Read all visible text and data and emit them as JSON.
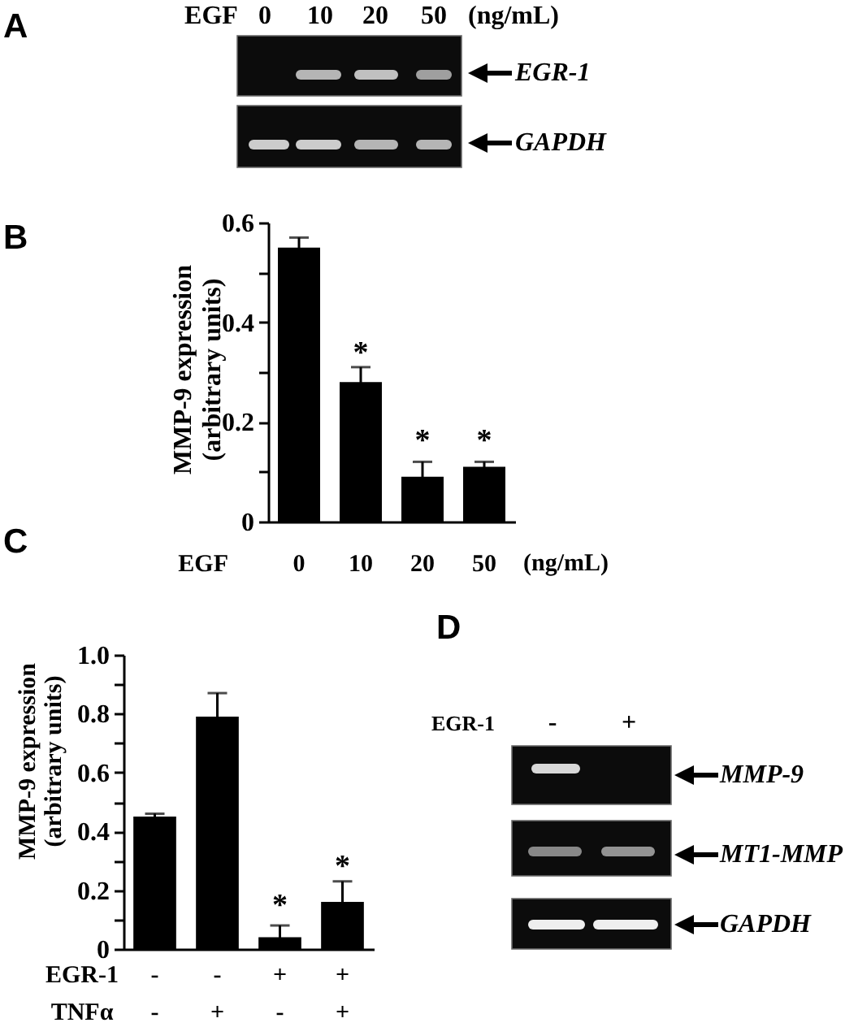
{
  "chart_data": [
    {
      "type": "other",
      "title": "A",
      "annotations": [
        "EGF",
        "0",
        "10",
        "20",
        "50",
        "(ng/mL)",
        "EGR-1",
        "GAPDH"
      ]
    },
    {
      "type": "bar",
      "title": "B",
      "ylabel": "MMP-9 expression\n(arbitrary units)",
      "xlabel": "EGF",
      "categories": [
        "0",
        "10",
        "20",
        "50"
      ],
      "values": [
        0.55,
        0.28,
        0.09,
        0.11
      ],
      "errors": [
        0.02,
        0.03,
        0.03,
        0.01
      ],
      "color": "#000000",
      "ylim": [
        0,
        0.6
      ],
      "yticks": [
        0,
        {
          "value": 0.1,
          "label": null
        },
        0.2,
        {
          "value": 0.3,
          "label": null
        },
        0.4,
        {
          "value": 0.5,
          "label": null
        },
        0.6
      ],
      "annotations": [
        "(ng/mL)",
        "*",
        "*",
        "*"
      ]
    },
    {
      "type": "bar",
      "title": "C",
      "ylabel": "MMP-9 expression\n(arbitrary units)",
      "xlabel": "EGR-1\nTNFα",
      "categories": [
        "-\n-",
        "-\n+",
        "+\n-",
        "+\n+"
      ],
      "values": [
        0.45,
        0.79,
        0.04,
        0.16
      ],
      "errors": [
        0.01,
        0.08,
        0.04,
        0.07
      ],
      "color": "#000000",
      "ylim": [
        0,
        1
      ],
      "yticks": [
        0,
        {
          "value": 0.1,
          "label": null
        },
        0.2,
        {
          "value": 0.3,
          "label": null
        },
        0.4,
        {
          "value": 0.5,
          "label": null
        },
        0.6,
        {
          "value": 0.7,
          "label": null
        },
        0.8,
        {
          "value": 0.9,
          "label": null
        },
        {
          "value": 1,
          "label": "1.0"
        }
      ],
      "annotations": [
        "*",
        "*"
      ]
    },
    {
      "type": "other",
      "title": "D",
      "annotations": [
        "EGR-1",
        "-",
        "+",
        "MMP-9",
        "MT1-MMP",
        "GAPDH"
      ]
    }
  ]
}
